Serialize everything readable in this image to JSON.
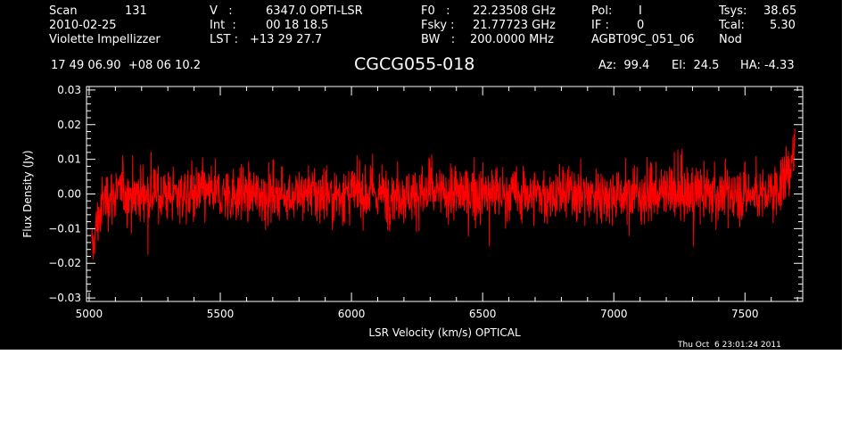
{
  "header": {
    "scan_label": "Scan",
    "scan_value": "131",
    "date": "2010-02-25",
    "observer": "Violette Impellizzer",
    "v_label": "V   :",
    "v_value": "6347.0 OPTI-LSR",
    "int_label": "Int  :",
    "int_value": "00 18 18.5",
    "lst_label": "LST :",
    "lst_value": "+13 29 27.7",
    "f0_label": "F0   :",
    "f0_value": "22.23508 GHz",
    "fsky_label": "Fsky :",
    "fsky_value": "21.77723 GHz",
    "bw_label": "BW   :",
    "bw_value": "200.0000 MHz",
    "pol_label": "Pol:",
    "pol_value": "I",
    "if_label": "IF :",
    "if_value": "0",
    "project": "AGBT09C_051_06",
    "tsys_label": "Tsys:",
    "tsys_value": "38.65",
    "tcal_label": "Tcal:",
    "tcal_value": "5.30",
    "proc": "Nod",
    "coords": "17 49 06.90  +08 06 10.2",
    "source": "CGCG055-018",
    "az": "Az:  99.4",
    "el": "El:  24.5",
    "ha": "HA: -4.33",
    "timestamp": "Thu Oct  6 23:01:24 2011"
  },
  "colors": {
    "background": "#000000",
    "axes": "#ffffff",
    "trace": "#ff0000"
  },
  "chart_data": {
    "type": "line",
    "xlabel": "LSR Velocity (km/s) OPTICAL",
    "ylabel": "Flux Density (Jy)",
    "xlim": [
      4990,
      7720
    ],
    "ylim": [
      -0.031,
      0.031
    ],
    "x_ticks": [
      5000,
      5500,
      6000,
      6500,
      7000,
      7500
    ],
    "x_tick_labels": [
      "5000",
      "5500",
      "6000",
      "6500",
      "7000",
      "7500"
    ],
    "y_ticks": [
      -0.03,
      -0.02,
      -0.01,
      0.0,
      0.01,
      0.02,
      0.03
    ],
    "y_tick_labels": [
      "−0.03",
      "−0.02",
      "−0.01",
      "0.00",
      "0.01",
      "0.02",
      "0.03"
    ],
    "grid": false,
    "series": [
      {
        "x_start": 5010,
        "x_end": 7690,
        "baseline": 0.0,
        "noise_rms": 0.0045,
        "color": "#ff0000",
        "envelope": [
          [
            5010,
            -0.018
          ],
          [
            5020,
            -0.012
          ],
          [
            5040,
            -0.006
          ],
          [
            5060,
            -0.001
          ],
          [
            5100,
            0.0
          ],
          [
            6000,
            0.0
          ],
          [
            7000,
            0.0
          ],
          [
            7600,
            0.0
          ],
          [
            7650,
            0.004
          ],
          [
            7690,
            0.012
          ]
        ]
      }
    ]
  }
}
